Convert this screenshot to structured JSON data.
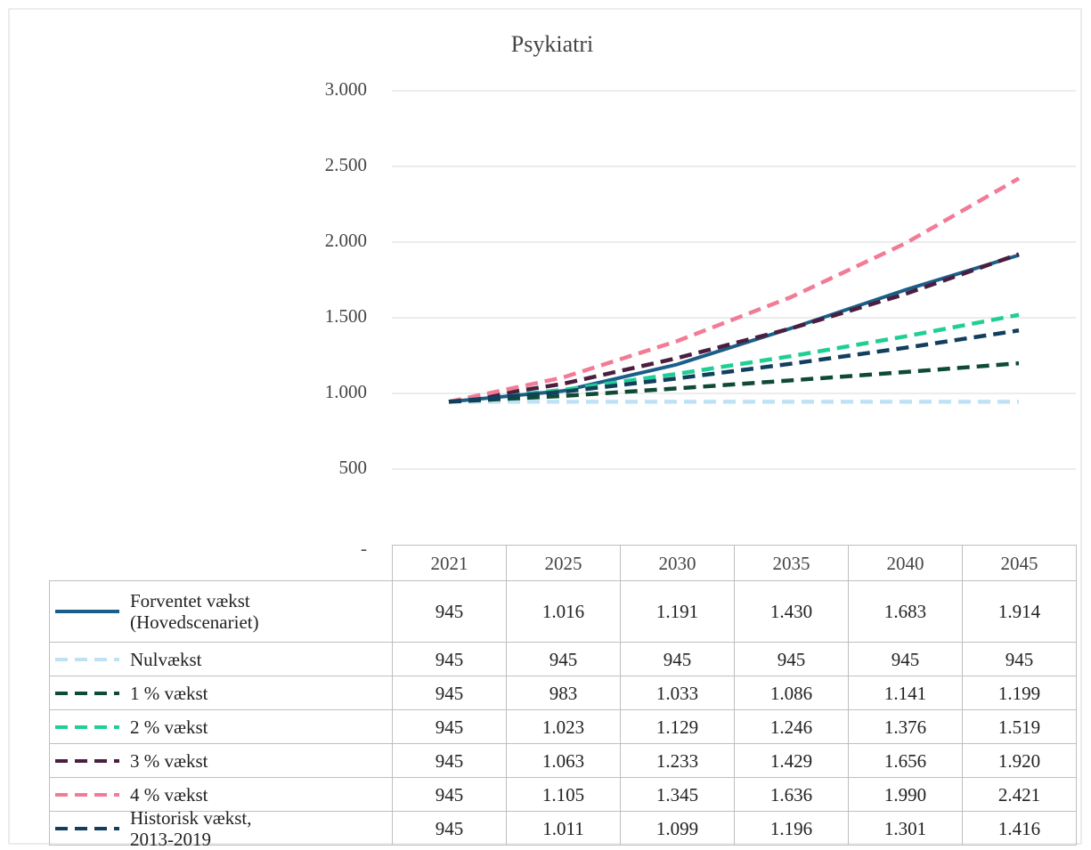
{
  "chart_data": {
    "type": "line",
    "title": "Psykiatri",
    "categories": [
      "2021",
      "2025",
      "2030",
      "2035",
      "2040",
      "2045"
    ],
    "ylim": [
      0,
      3000
    ],
    "yticks": [
      {
        "value": 0,
        "label": "-"
      },
      500,
      {
        "value": 1000,
        "label": "1.000"
      },
      {
        "value": 1500,
        "label": "1.500"
      },
      {
        "value": 2000,
        "label": "2.000"
      },
      {
        "value": 2500,
        "label": "2.500"
      },
      {
        "value": 3000,
        "label": "3.000"
      }
    ],
    "grid": true,
    "series": [
      {
        "name": "Forventet vækst (Hovedscenariet)",
        "color": "#1b5f88",
        "line_style": "solid",
        "values": [
          945,
          1016,
          1191,
          1430,
          1683,
          1914
        ],
        "value_labels": [
          "945",
          "1.016",
          "1.191",
          "1.430",
          "1.683",
          "1.914"
        ]
      },
      {
        "name": "Nulvækst",
        "color": "#bfe1f6",
        "line_style": "dashed",
        "values": [
          945,
          945,
          945,
          945,
          945,
          945
        ]
      },
      {
        "name": "1 % vækst",
        "color": "#0e4a36",
        "line_style": "dashed",
        "values": [
          945,
          983,
          1033,
          1086,
          1141,
          1199
        ],
        "value_labels": [
          "945",
          "983",
          "1.033",
          "1.086",
          "1.141",
          "1.199"
        ]
      },
      {
        "name": "2 % vækst",
        "color": "#1fcf94",
        "line_style": "dashed",
        "values": [
          945,
          1023,
          1129,
          1246,
          1376,
          1519
        ],
        "value_labels": [
          "945",
          "1.023",
          "1.129",
          "1.246",
          "1.376",
          "1.519"
        ]
      },
      {
        "name": "3 % vækst",
        "color": "#4b1e40",
        "line_style": "dashed",
        "values": [
          945,
          1063,
          1233,
          1429,
          1656,
          1920
        ],
        "value_labels": [
          "945",
          "1.063",
          "1.233",
          "1.429",
          "1.656",
          "1.920"
        ]
      },
      {
        "name": "4 % vækst",
        "color": "#f27b96",
        "line_style": "dashed",
        "values": [
          945,
          1105,
          1345,
          1636,
          1990,
          2421
        ],
        "value_labels": [
          "945",
          "1.105",
          "1.345",
          "1.636",
          "1.990",
          "2.421"
        ]
      },
      {
        "name": "Historisk vækst, 2013-2019",
        "color": "#123f5e",
        "line_style": "dashed",
        "values": [
          945,
          1011,
          1099,
          1196,
          1301,
          1416
        ],
        "value_labels": [
          "945",
          "1.011",
          "1.099",
          "1.196",
          "1.301",
          "1.416"
        ]
      }
    ]
  }
}
